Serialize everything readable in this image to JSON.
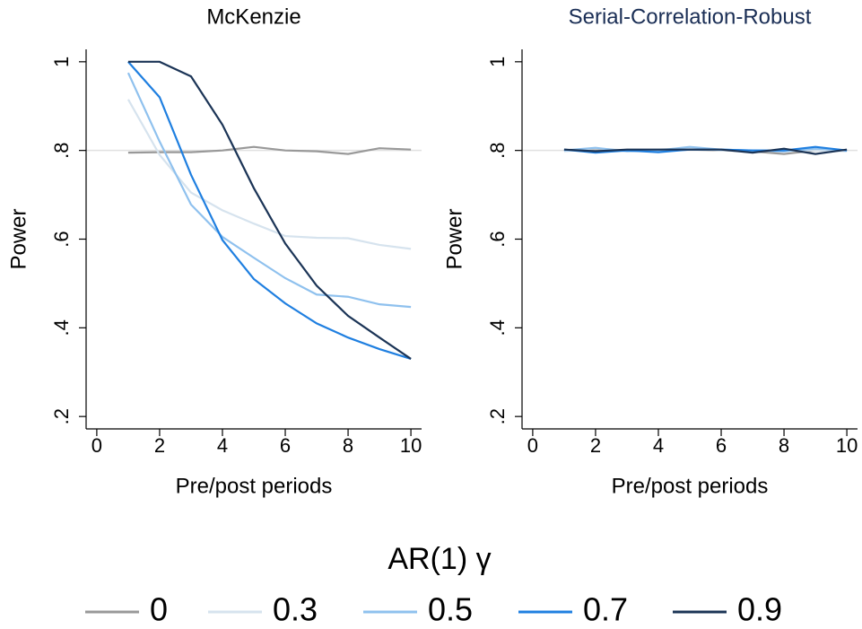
{
  "chart_data": [
    {
      "type": "line",
      "title": "McKenzie",
      "title_color": "#000000",
      "xlabel": "Pre/post periods",
      "ylabel": "Power",
      "x": [
        1,
        2,
        3,
        4,
        5,
        6,
        7,
        8,
        9,
        10
      ],
      "xlim": [
        -0.34,
        10.34
      ],
      "xticks": [
        0,
        2,
        4,
        6,
        8,
        10
      ],
      "ylim": [
        0.172,
        1.028
      ],
      "yticks": [
        {
          "value": 0.2,
          "label": ".2"
        },
        {
          "value": 0.4,
          "label": ".4"
        },
        {
          "value": 0.6,
          "label": ".6"
        },
        {
          "value": 0.8,
          "label": ".8"
        },
        1
      ],
      "reference_line": 0.8,
      "series": [
        {
          "name": "0",
          "color": "#999999",
          "values": [
            0.795,
            0.796,
            0.796,
            0.8,
            0.808,
            0.8,
            0.798,
            0.792,
            0.805,
            0.802
          ]
        },
        {
          "name": "0.3",
          "color": "#d6e3ee",
          "values": [
            0.915,
            0.79,
            0.705,
            0.665,
            0.635,
            0.607,
            0.603,
            0.602,
            0.587,
            0.578
          ]
        },
        {
          "name": "0.5",
          "color": "#8fc1ee",
          "values": [
            0.975,
            0.82,
            0.678,
            0.605,
            0.558,
            0.512,
            0.475,
            0.47,
            0.453,
            0.447
          ]
        },
        {
          "name": "0.7",
          "color": "#1f7fe0",
          "values": [
            1.0,
            0.92,
            0.745,
            0.598,
            0.51,
            0.455,
            0.41,
            0.378,
            0.352,
            0.33
          ]
        },
        {
          "name": "0.9",
          "color": "#1b3456",
          "values": [
            1.0,
            1.0,
            0.967,
            0.858,
            0.715,
            0.59,
            0.495,
            0.427,
            0.378,
            0.33
          ]
        }
      ]
    },
    {
      "type": "line",
      "title": "Serial-Correlation-Robust",
      "title_color": "#1a2e55",
      "xlabel": "Pre/post periods",
      "ylabel": "Power",
      "x": [
        1,
        2,
        3,
        4,
        5,
        6,
        7,
        8,
        9,
        10
      ],
      "xlim": [
        -0.34,
        10.34
      ],
      "xticks": [
        0,
        2,
        4,
        6,
        8,
        10
      ],
      "ylim": [
        0.172,
        1.028
      ],
      "yticks": [
        {
          "value": 0.2,
          "label": ".2"
        },
        {
          "value": 0.4,
          "label": ".4"
        },
        {
          "value": 0.6,
          "label": ".6"
        },
        {
          "value": 0.8,
          "label": ".8"
        },
        1
      ],
      "reference_line": 0.8,
      "series": [
        {
          "name": "0",
          "color": "#999999",
          "values": [
            0.8,
            0.8,
            0.8,
            0.8,
            0.802,
            0.8,
            0.798,
            0.792,
            0.8,
            0.8
          ]
        },
        {
          "name": "0.3",
          "color": "#d6e3ee",
          "values": [
            0.798,
            0.805,
            0.8,
            0.802,
            0.806,
            0.8,
            0.8,
            0.8,
            0.8,
            0.798
          ]
        },
        {
          "name": "0.5",
          "color": "#8fc1ee",
          "values": [
            0.8,
            0.806,
            0.798,
            0.8,
            0.808,
            0.802,
            0.8,
            0.798,
            0.804,
            0.8
          ]
        },
        {
          "name": "0.7",
          "color": "#1f7fe0",
          "values": [
            0.802,
            0.795,
            0.8,
            0.796,
            0.802,
            0.802,
            0.8,
            0.8,
            0.808,
            0.8
          ]
        },
        {
          "name": "0.9",
          "color": "#1b3456",
          "values": [
            0.802,
            0.798,
            0.802,
            0.802,
            0.802,
            0.802,
            0.795,
            0.804,
            0.792,
            0.802
          ]
        }
      ]
    }
  ],
  "legend": {
    "title": "AR(1) γ"
  }
}
